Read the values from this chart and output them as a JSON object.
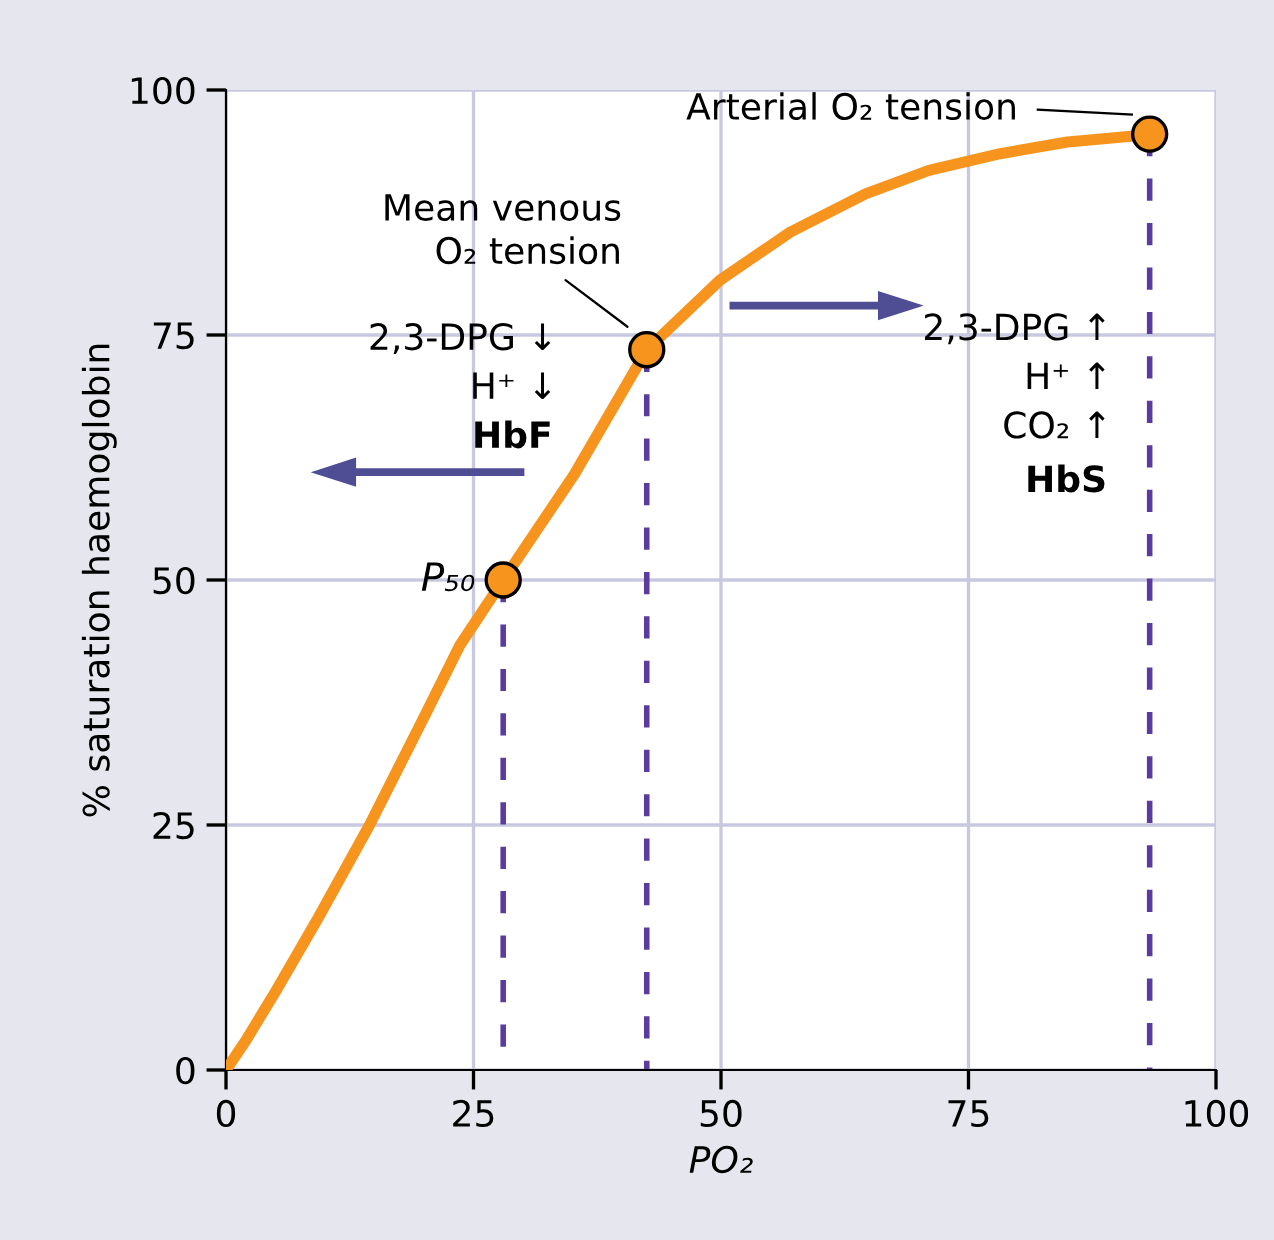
{
  "chart_data": {
    "type": "line",
    "xlabel": "PO₂",
    "ylabel": "% saturation haemoglobin",
    "xlim": [
      0,
      100
    ],
    "ylim": [
      0,
      100
    ],
    "xticks": [
      0,
      25,
      50,
      75,
      100
    ],
    "yticks": [
      0,
      25,
      50,
      75,
      100
    ],
    "grid": true,
    "series": [
      {
        "color": "#f7941d",
        "x": [
          0,
          2,
          5,
          9.3,
          14.5,
          20,
          23.6,
          28,
          35.2,
          42.5,
          49.9,
          57,
          64.6,
          71,
          78.2,
          85,
          91.7,
          93.3
        ],
        "values": [
          0,
          3,
          8,
          15.5,
          25,
          36,
          43.3,
          50,
          60.8,
          73.5,
          80.6,
          85.5,
          89.4,
          91.8,
          93.5,
          94.7,
          95.3,
          95.5
        ]
      },
      {
        "color": "#5b3c9e",
        "line_style": "dashed",
        "x": [
          28,
          28
        ],
        "values": [
          50,
          0
        ]
      },
      {
        "color": "#5b3c9e",
        "line_style": "dashed",
        "x": [
          42.5,
          42.5
        ],
        "values": [
          73.5,
          0
        ]
      },
      {
        "color": "#5b3c9e",
        "line_style": "dashed",
        "x": [
          93.3,
          93.3
        ],
        "values": [
          95.5,
          0
        ]
      },
      {
        "type": "scatter",
        "color": "#f7941d",
        "marker": "circle",
        "x": [
          28,
          42.5,
          93.3
        ],
        "values": [
          50,
          73.5,
          95.5
        ]
      }
    ],
    "annotations": [
      "Arterial O₂ tension",
      {
        "text": "Mean venous\nO₂ tension",
        "x": 42.5,
        "y": 73.5
      },
      {
        "text": "P₅₀",
        "x": 28,
        "y": 50
      },
      "2,3-DPG ↓",
      "H⁺ ↓",
      "HbF",
      "2,3-DPG ↑",
      "H⁺ ↑",
      "CO₂ ↑",
      "HbS"
    ]
  }
}
